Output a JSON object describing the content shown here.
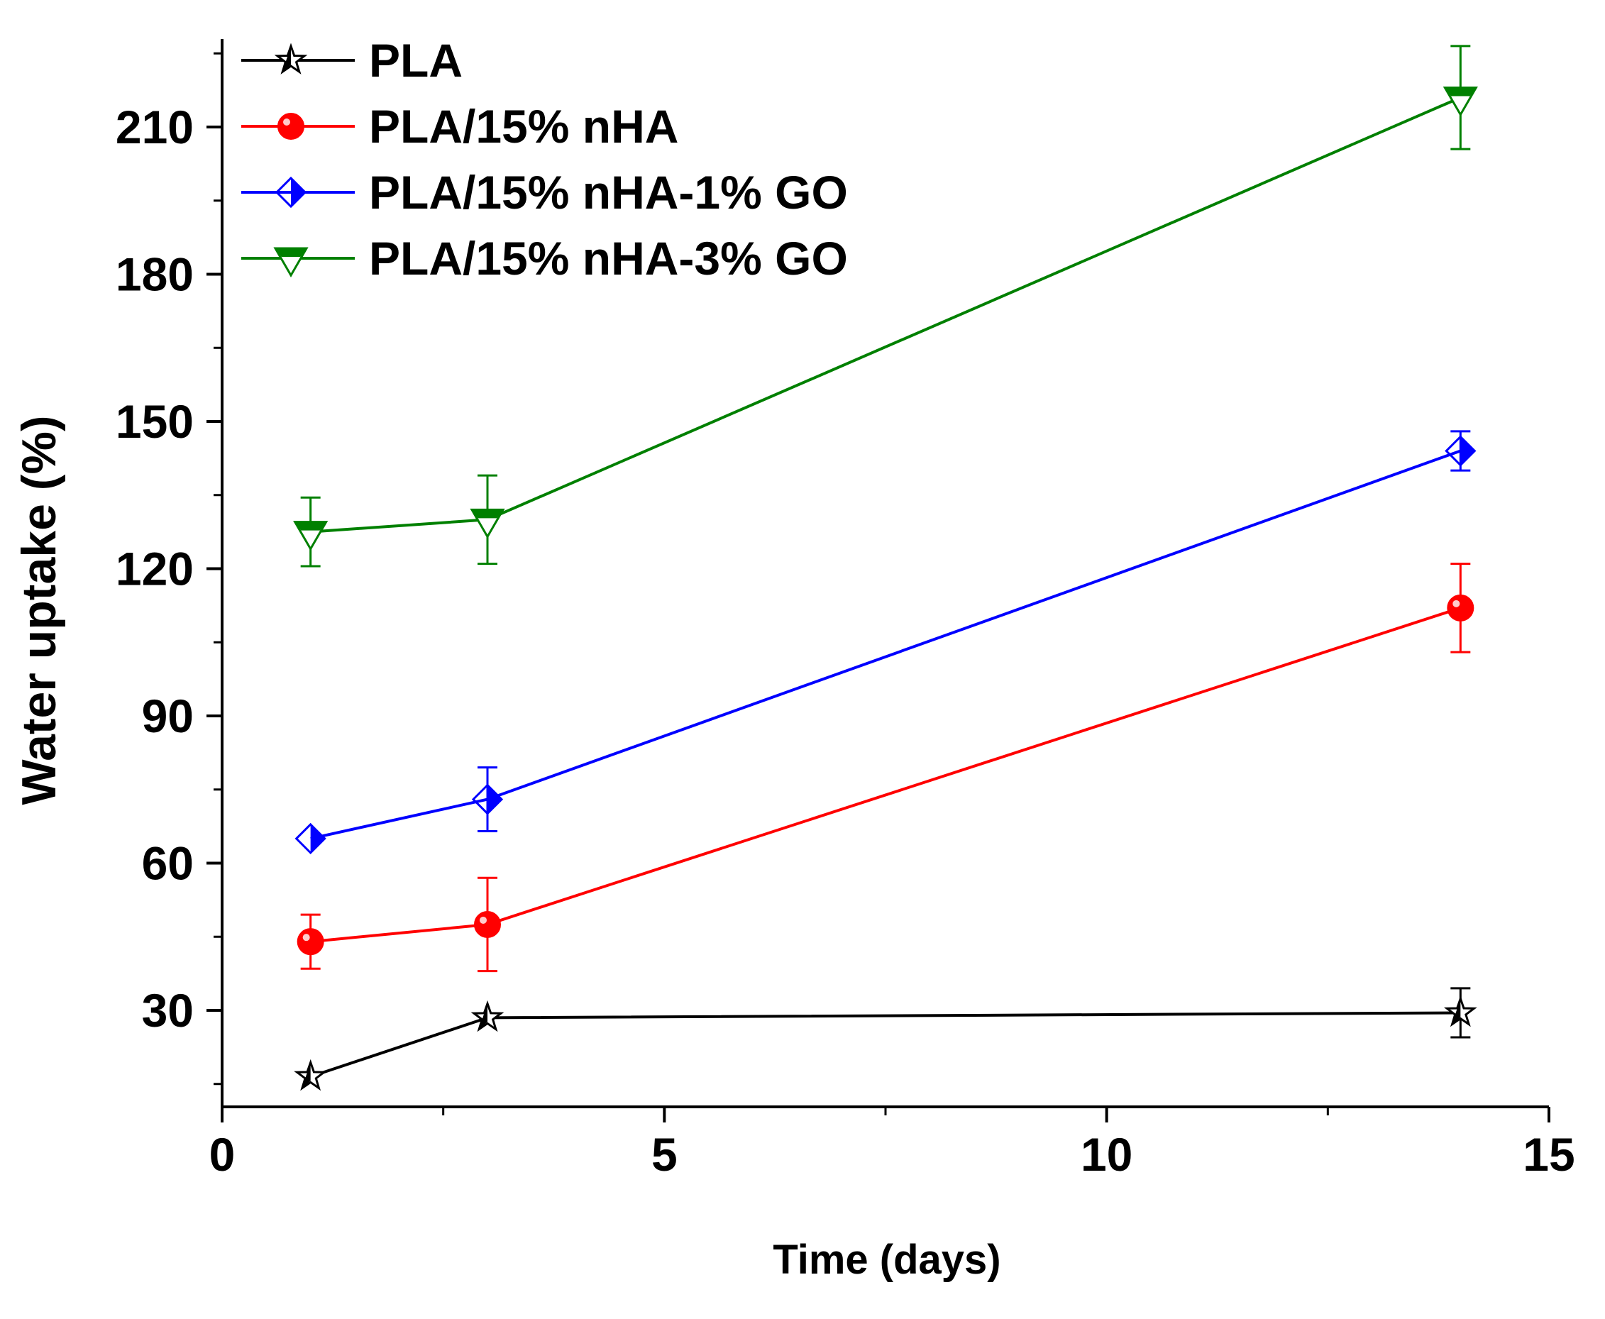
{
  "chart_data": {
    "type": "line",
    "title": "",
    "xlabel": "Time (days)",
    "ylabel": "Water uptake (%)",
    "xlim": [
      0,
      15
    ],
    "ylim": [
      10,
      220
    ],
    "x_ticks": [
      0,
      5,
      10,
      15
    ],
    "y_ticks": [
      30,
      60,
      90,
      120,
      150,
      180,
      210
    ],
    "grid": false,
    "legend_position": "top-left",
    "series": [
      {
        "name": "PLA",
        "color": "#000000",
        "marker": "star",
        "x": [
          1,
          3,
          14
        ],
        "y": [
          16.5,
          28.5,
          29.5
        ],
        "err": [
          0,
          0,
          5
        ]
      },
      {
        "name": "PLA/15% nHA",
        "color": "#ff0000",
        "marker": "circle",
        "x": [
          1,
          3,
          14
        ],
        "y": [
          44,
          47.5,
          112
        ],
        "err": [
          5.5,
          9.5,
          9
        ]
      },
      {
        "name": "PLA/15% nHA-1% GO",
        "color": "#0000ff",
        "marker": "half-diamond",
        "x": [
          1,
          3,
          14
        ],
        "y": [
          65,
          73,
          144
        ],
        "err": [
          0,
          6.5,
          4
        ]
      },
      {
        "name": "PLA/15% nHA-3% GO",
        "color": "#008000",
        "marker": "triangle-down",
        "x": [
          1,
          3,
          14
        ],
        "y": [
          127.5,
          130,
          216
        ],
        "err": [
          7,
          9,
          10.5
        ]
      }
    ]
  }
}
